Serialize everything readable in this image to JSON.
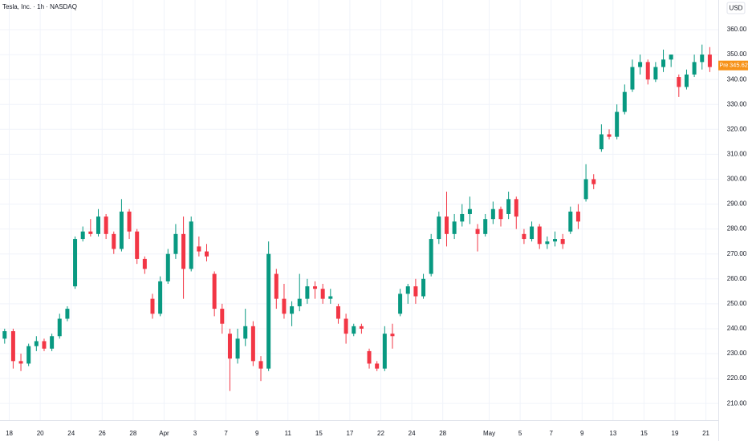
{
  "chart_data": {
    "type": "candlestick",
    "title": "Tesla, Inc. · 1h · NASDAQ",
    "currency": "USD",
    "up_color": "#089981",
    "down_color": "#f23645",
    "grid": true,
    "pre_market": {
      "tag": "Pre",
      "value": 345.62,
      "color": "#f7931a"
    },
    "xlim": [
      -0.6,
      45.8
    ],
    "xticks": [
      {
        "value": 0,
        "label": "18"
      },
      {
        "value": 2,
        "label": "20"
      },
      {
        "value": 4,
        "label": "24"
      },
      {
        "value": 6,
        "label": "26"
      },
      {
        "value": 8,
        "label": "28"
      },
      {
        "value": 10,
        "label": "Apr"
      },
      {
        "value": 12,
        "label": "3"
      },
      {
        "value": 14,
        "label": "7"
      },
      {
        "value": 16,
        "label": "9"
      },
      {
        "value": 18,
        "label": "11"
      },
      {
        "value": 20,
        "label": "15"
      },
      {
        "value": 22,
        "label": "17"
      },
      {
        "value": 24,
        "label": "22"
      },
      {
        "value": 26,
        "label": "24"
      },
      {
        "value": 28,
        "label": "28"
      },
      {
        "value": 31,
        "label": "May"
      },
      {
        "value": 33,
        "label": "5"
      },
      {
        "value": 35,
        "label": "7"
      },
      {
        "value": 37,
        "label": "9"
      },
      {
        "value": 39,
        "label": "13"
      },
      {
        "value": 41,
        "label": "15"
      },
      {
        "value": 43,
        "label": "19"
      },
      {
        "value": 45,
        "label": "21"
      }
    ],
    "ylim": [
      203.3,
      371.9
    ],
    "yticks": [
      {
        "value": 210,
        "label": "210.00"
      },
      {
        "value": 220,
        "label": "220.00"
      },
      {
        "value": 230,
        "label": "230.00"
      },
      {
        "value": 240,
        "label": "240.00"
      },
      {
        "value": 250,
        "label": "250.00"
      },
      {
        "value": 260,
        "label": "260.00"
      },
      {
        "value": 270,
        "label": "270.00"
      },
      {
        "value": 280,
        "label": "280.00"
      },
      {
        "value": 290,
        "label": "290.00"
      },
      {
        "value": 300,
        "label": "300.00"
      },
      {
        "value": 310,
        "label": "310.00"
      },
      {
        "value": 320,
        "label": "320.00"
      },
      {
        "value": 330,
        "label": "330.00"
      },
      {
        "value": 340,
        "label": "340.00"
      },
      {
        "value": 350,
        "label": "350.00"
      },
      {
        "value": 360,
        "label": "360.00"
      }
    ],
    "x": [
      -0.3,
      0.25,
      0.75,
      1.25,
      1.75,
      2.25,
      2.75,
      3.25,
      3.75,
      4.25,
      4.75,
      5.25,
      5.75,
      6.25,
      6.75,
      7.25,
      7.75,
      8.25,
      8.75,
      9.25,
      9.75,
      10.25,
      10.75,
      11.25,
      11.75,
      12.25,
      12.75,
      13.25,
      13.75,
      14.25,
      14.75,
      15.25,
      15.75,
      16.25,
      16.75,
      17.25,
      17.75,
      18.25,
      18.75,
      19.25,
      19.75,
      20.25,
      20.75,
      21.25,
      21.75,
      22.25,
      22.75,
      23.25,
      23.75,
      24.25,
      24.75,
      25.25,
      25.75,
      26.25,
      26.75,
      27.25,
      27.75,
      28.25,
      28.75,
      29.25,
      29.75,
      30.25,
      30.75,
      31.25,
      31.75,
      32.25,
      32.75,
      33.25,
      33.75,
      34.25,
      34.75,
      35.25,
      35.75,
      36.25,
      36.75,
      37.25,
      37.75,
      38.25,
      38.75,
      39.25,
      39.75,
      40.25,
      40.75,
      41.25,
      41.75,
      42.25,
      42.75,
      43.25,
      43.75,
      44.25,
      44.75,
      45.25
    ],
    "open": [
      236,
      239,
      227,
      226,
      233,
      235,
      232,
      237,
      244,
      257,
      276,
      279,
      278,
      285,
      278,
      272,
      287,
      279,
      268,
      252,
      246,
      259,
      270,
      278,
      264,
      273,
      271,
      262,
      248,
      238,
      228,
      236,
      241,
      227,
      224,
      262,
      252,
      246,
      249,
      252,
      257,
      256,
      252,
      249,
      244,
      238,
      241,
      231,
      226,
      224,
      238,
      246,
      254,
      257,
      253,
      262,
      276,
      285,
      278,
      283,
      286,
      280,
      278,
      284,
      288,
      286,
      292,
      278,
      276,
      281,
      274,
      275,
      276,
      279,
      287,
      292,
      300,
      312,
      318,
      317,
      327,
      336,
      345,
      347,
      340,
      345,
      348,
      341,
      337,
      342,
      347,
      350
    ],
    "high": [
      240,
      240,
      230,
      234,
      237,
      236,
      238,
      246,
      249,
      277,
      281,
      284,
      288,
      286,
      279,
      292,
      288,
      280,
      269,
      254,
      261,
      272,
      282,
      285,
      285,
      277,
      274,
      263,
      250,
      240,
      240,
      248,
      243,
      229,
      275,
      264,
      258,
      251,
      262,
      260,
      259,
      258,
      256,
      250,
      246,
      242,
      242,
      232,
      227,
      241,
      242,
      256,
      258,
      260,
      262,
      278,
      287,
      295,
      286,
      290,
      293,
      282,
      286,
      291,
      289,
      295,
      293,
      280,
      283,
      282,
      277,
      279,
      278,
      289,
      290,
      306,
      302,
      322,
      320,
      330,
      338,
      348,
      350,
      348,
      347,
      352,
      350,
      342,
      344,
      350,
      354,
      353
    ],
    "low": [
      234,
      224,
      223,
      225,
      231,
      231,
      231,
      236,
      243,
      256,
      275,
      277,
      277,
      276,
      270,
      271,
      276,
      266,
      262,
      244,
      245,
      258,
      268,
      252,
      263,
      269,
      267,
      245,
      238,
      215,
      226,
      233,
      225,
      219,
      223,
      248,
      244,
      241,
      247,
      250,
      252,
      250,
      250,
      242,
      234,
      237,
      238,
      224,
      223,
      223,
      232,
      245,
      250,
      250,
      252,
      261,
      274,
      273,
      276,
      281,
      282,
      271,
      277,
      282,
      281,
      284,
      280,
      274,
      275,
      272,
      272,
      273,
      272,
      278,
      280,
      291,
      296,
      311,
      316,
      316,
      326,
      335,
      342,
      338,
      339,
      343,
      345,
      333,
      336,
      341,
      344,
      343
    ],
    "close": [
      239,
      227,
      226,
      233,
      235,
      232,
      237,
      244,
      248,
      276,
      279,
      278,
      285,
      278,
      272,
      287,
      279,
      268,
      264,
      246,
      259,
      270,
      278,
      264,
      283,
      271,
      269,
      248,
      242,
      228,
      236,
      241,
      227,
      224,
      270,
      252,
      246,
      249,
      252,
      257,
      256,
      252,
      253,
      244,
      238,
      241,
      240,
      226,
      224,
      238,
      237,
      254,
      257,
      253,
      260,
      276,
      285,
      278,
      283,
      286,
      288,
      278,
      284,
      288,
      284,
      292,
      285,
      276,
      281,
      274,
      275,
      276,
      274,
      287,
      283,
      300,
      298,
      318,
      317,
      327,
      335,
      345,
      347,
      340,
      345,
      348,
      350,
      337,
      342,
      347,
      350,
      345
    ]
  }
}
